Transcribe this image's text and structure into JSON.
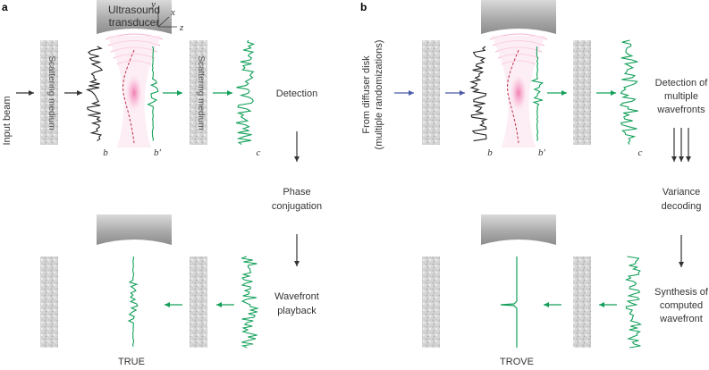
{
  "panel_a": {
    "tag": "a",
    "input_label": "Input beam",
    "transducer_line1": "Ultrasound",
    "transducer_line2": "transducer",
    "axis_y": "y",
    "axis_x": "x",
    "axis_z": "z",
    "medium_label_left": "Scattering medium",
    "medium_label_right": "Scattering medium",
    "wave_b": "b",
    "wave_b_prime": "b′",
    "wave_c": "c",
    "step_detection": "Detection",
    "step_phase_1": "Phase",
    "step_phase_2": "conjugation",
    "step_playback_1": "Wavefront",
    "step_playback_2": "playback",
    "caption": "TRUE"
  },
  "panel_b": {
    "tag": "b",
    "input_label_1": "From diffuser disk",
    "input_label_2": "(multiple randomizations)",
    "wave_b": "b",
    "wave_b_prime": "b′",
    "wave_c": "c",
    "step_detect_1": "Detection of",
    "step_detect_2": "multiple",
    "step_detect_3": "wavefronts",
    "step_variance_1": "Variance",
    "step_variance_2": "decoding",
    "step_synth_1": "Synthesis of",
    "step_synth_2": "computed",
    "step_synth_3": "wavefront",
    "caption": "TROVE"
  },
  "colors": {
    "green": "#13a05a",
    "blue": "#4a5aa8",
    "focus_pink": "#ee3b8c",
    "medium_gray": "#cfcfcf",
    "transducer_gray": "#9a9a9a"
  }
}
